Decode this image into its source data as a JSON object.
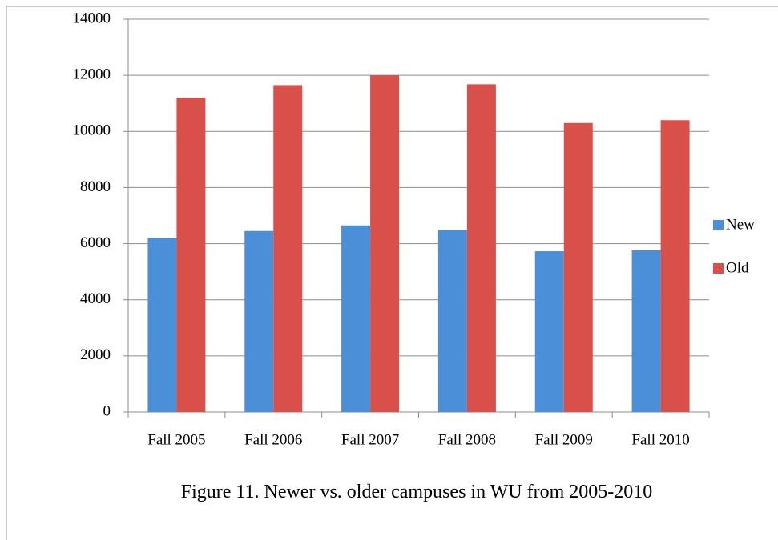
{
  "chart_data": {
    "type": "bar",
    "title": "Figure 11. Newer vs. older campuses in WU from 2005-2010",
    "categories": [
      "Fall 2005",
      "Fall 2006",
      "Fall 2007",
      "Fall 2008",
      "Fall 2009",
      "Fall 2010"
    ],
    "series": [
      {
        "name": "New",
        "color": "#4a8fd8",
        "values": [
          6200,
          6450,
          6650,
          6480,
          5730,
          5760
        ]
      },
      {
        "name": "Old",
        "color": "#d9504a",
        "values": [
          11200,
          11650,
          12000,
          11680,
          10300,
          10400
        ]
      }
    ],
    "ylim": [
      0,
      14000
    ],
    "yticks": [
      0,
      2000,
      4000,
      6000,
      8000,
      10000,
      12000,
      14000
    ],
    "grid": true,
    "legend": "right"
  }
}
